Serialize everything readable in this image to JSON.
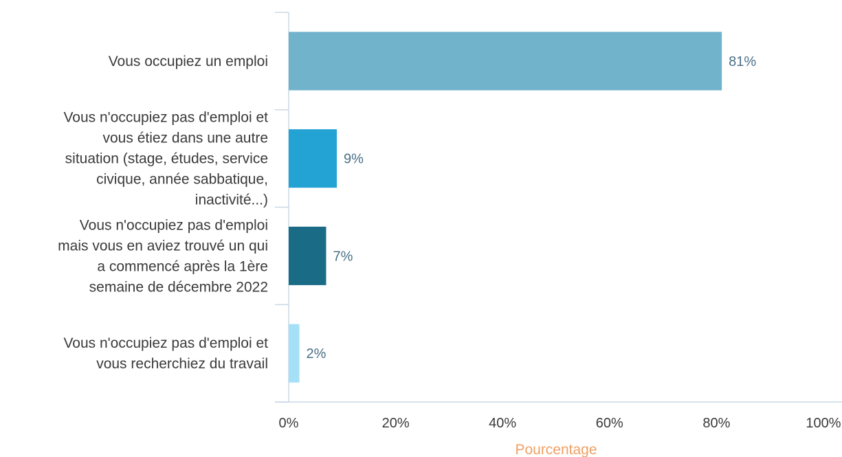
{
  "chart_data": {
    "type": "bar",
    "orientation": "horizontal",
    "categories": [
      [
        "Vous occupiez un emploi"
      ],
      [
        "Vous n'occupiez pas d'emploi et",
        "vous étiez dans une autre",
        "situation (stage, études, service",
        "civique, année sabbatique,",
        "inactivité...)"
      ],
      [
        "Vous n'occupiez pas d'emploi",
        "mais vous en aviez trouvé un qui",
        "a commencé après la 1ère",
        "semaine de décembre 2022"
      ],
      [
        "Vous n'occupiez pas d'emploi et",
        "vous recherchiez du travail"
      ]
    ],
    "values": [
      81,
      9,
      7,
      2
    ],
    "data_labels": [
      "81%",
      "9%",
      "7%",
      "2%"
    ],
    "colors": [
      "#71b3cb",
      "#23a3d4",
      "#1a6c86",
      "#a5e0f7"
    ],
    "xlim": [
      0,
      100
    ],
    "x_ticks": [
      "0%",
      "20%",
      "40%",
      "60%",
      "80%",
      "100%"
    ],
    "xlabel": "Pourcentage",
    "ylabel": "",
    "title": "",
    "grid": false,
    "legend": false
  }
}
